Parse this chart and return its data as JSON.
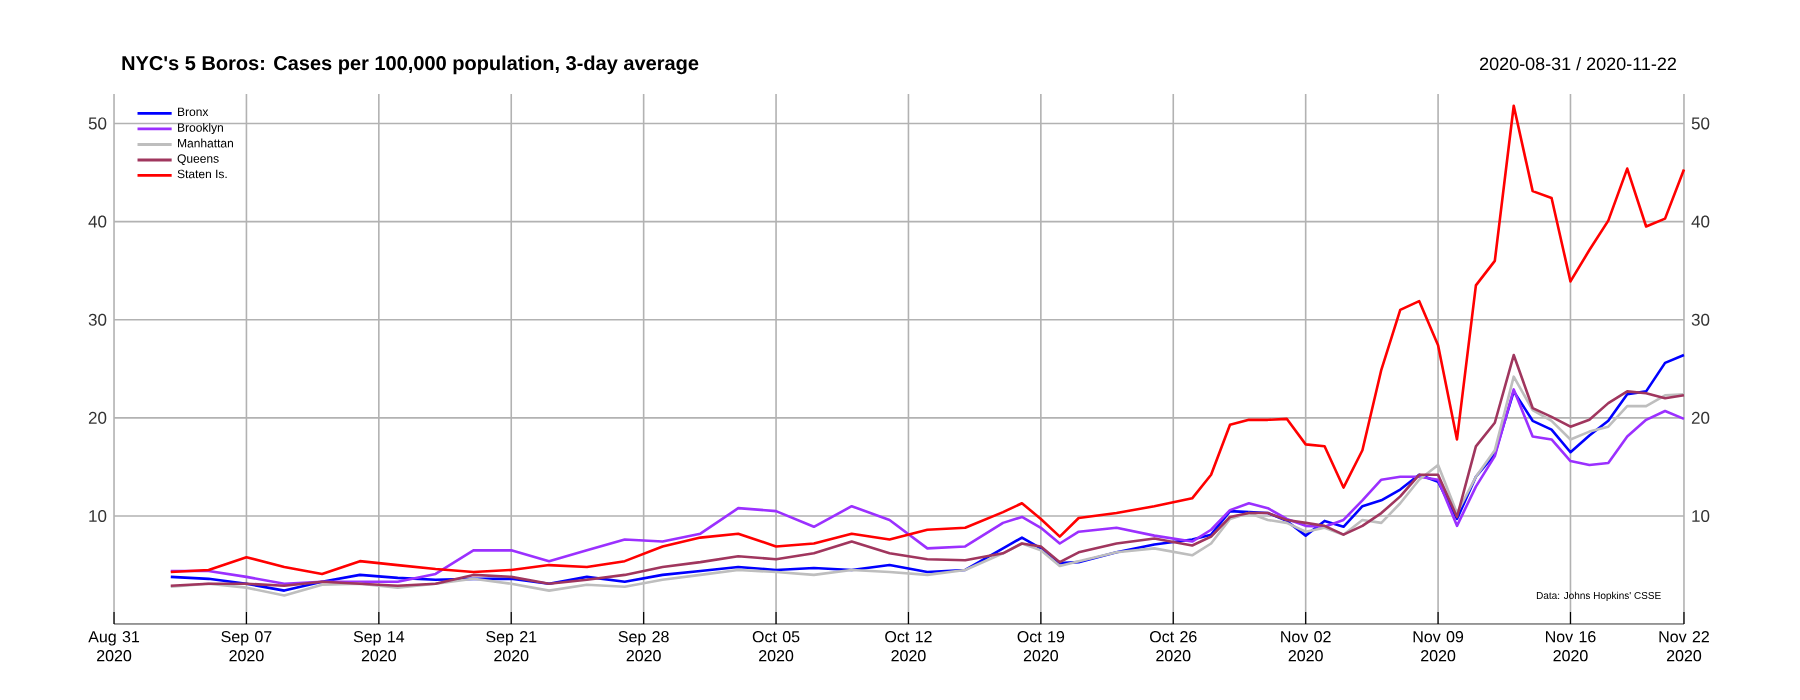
{
  "chart_data": {
    "type": "line",
    "title": "NYC's 5 Boros: Cases per 100,000 population, 3-day average",
    "subtitle": "2020-08-31 / 2020-11-22",
    "annotations": [
      "Data: Johns Hopkins' CSSE"
    ],
    "x": [
      "2020-09-03",
      "2020-09-05",
      "2020-09-07",
      "2020-09-09",
      "2020-09-11",
      "2020-09-13",
      "2020-09-15",
      "2020-09-17",
      "2020-09-19",
      "2020-09-21",
      "2020-09-23",
      "2020-09-25",
      "2020-09-27",
      "2020-09-29",
      "2020-10-01",
      "2020-10-03",
      "2020-10-05",
      "2020-10-07",
      "2020-10-09",
      "2020-10-11",
      "2020-10-13",
      "2020-10-15",
      "2020-10-17",
      "2020-10-18",
      "2020-10-19",
      "2020-10-20",
      "2020-10-21",
      "2020-10-23",
      "2020-10-25",
      "2020-10-27",
      "2020-10-28",
      "2020-10-29",
      "2020-10-30",
      "2020-10-31",
      "2020-11-01",
      "2020-11-02",
      "2020-11-03",
      "2020-11-04",
      "2020-11-05",
      "2020-11-06",
      "2020-11-07",
      "2020-11-08",
      "2020-11-09",
      "2020-11-10",
      "2020-11-11",
      "2020-11-12",
      "2020-11-13",
      "2020-11-14",
      "2020-11-15",
      "2020-11-16",
      "2020-11-17",
      "2020-11-18",
      "2020-11-19",
      "2020-11-20",
      "2020-11-21",
      "2020-11-22"
    ],
    "series": [
      {
        "name": "Bronx",
        "color": "#0000ff",
        "values": [
          3.8,
          3.6,
          3.1,
          2.4,
          3.3,
          4.0,
          3.7,
          3.5,
          3.6,
          3.6,
          3.1,
          3.8,
          3.3,
          4.0,
          4.4,
          4.8,
          4.5,
          4.7,
          4.5,
          5.0,
          4.3,
          4.5,
          6.7,
          7.8,
          6.7,
          5.2,
          5.3,
          6.3,
          7.1,
          7.6,
          8.1,
          10.5,
          10.4,
          10.3,
          9.5,
          8.0,
          9.5,
          8.9,
          11.0,
          11.6,
          12.7,
          14.2,
          13.5,
          9.7,
          14.0,
          16.3,
          22.7,
          19.7,
          18.8,
          16.5,
          18.2,
          19.7,
          22.4,
          22.7,
          25.6,
          26.4
        ]
      },
      {
        "name": "Brooklyn",
        "color": "#9b30ff",
        "values": [
          4.4,
          4.4,
          3.8,
          3.1,
          3.3,
          3.3,
          3.3,
          4.1,
          6.5,
          6.5,
          5.4,
          6.5,
          7.6,
          7.4,
          8.2,
          10.8,
          10.5,
          8.9,
          11.0,
          9.6,
          6.7,
          6.9,
          9.3,
          9.9,
          8.8,
          7.2,
          8.4,
          8.8,
          8.0,
          7.4,
          8.6,
          10.6,
          11.3,
          10.8,
          9.7,
          9.0,
          8.9,
          9.6,
          11.6,
          13.7,
          14.0,
          14.0,
          13.7,
          9.0,
          13.0,
          16.1,
          22.9,
          18.1,
          17.8,
          15.6,
          15.2,
          15.4,
          18.1,
          19.8,
          20.7,
          19.9
        ]
      },
      {
        "name": "Manhattan",
        "color": "#bebebe",
        "values": [
          2.8,
          3.1,
          2.7,
          1.9,
          3.0,
          3.1,
          2.7,
          3.1,
          3.6,
          3.1,
          2.4,
          3.0,
          2.8,
          3.5,
          4.0,
          4.5,
          4.3,
          4.0,
          4.5,
          4.3,
          4.0,
          4.5,
          6.2,
          7.2,
          6.5,
          4.9,
          5.4,
          6.3,
          6.7,
          6.0,
          7.2,
          9.7,
          10.3,
          9.6,
          9.3,
          8.4,
          8.8,
          8.1,
          9.6,
          9.3,
          11.3,
          13.7,
          15.2,
          10.3,
          14.0,
          16.7,
          24.2,
          20.8,
          19.7,
          17.8,
          18.6,
          19.1,
          21.2,
          21.2,
          22.3,
          22.4
        ]
      },
      {
        "name": "Queens",
        "color": "#a0365e",
        "values": [
          2.9,
          3.1,
          3.1,
          2.9,
          3.3,
          3.1,
          2.9,
          3.1,
          4.0,
          3.8,
          3.1,
          3.5,
          4.0,
          4.8,
          5.3,
          5.9,
          5.6,
          6.2,
          7.4,
          6.2,
          5.6,
          5.5,
          6.2,
          7.2,
          6.9,
          5.3,
          6.3,
          7.2,
          7.7,
          7.0,
          7.9,
          9.9,
          10.3,
          10.3,
          9.6,
          9.3,
          9.0,
          8.1,
          9.0,
          10.3,
          12.0,
          14.2,
          14.2,
          9.9,
          17.1,
          19.5,
          26.4,
          21.0,
          20.1,
          19.1,
          19.8,
          21.5,
          22.7,
          22.5,
          22.0,
          22.3
        ]
      },
      {
        "name": "Staten Is.",
        "color": "#ff0000",
        "values": [
          4.3,
          4.5,
          5.8,
          4.8,
          4.1,
          5.4,
          5.0,
          4.6,
          4.3,
          4.5,
          5.0,
          4.8,
          5.4,
          6.9,
          7.8,
          8.2,
          6.9,
          7.2,
          8.2,
          7.6,
          8.6,
          8.8,
          10.4,
          11.3,
          9.7,
          7.9,
          9.8,
          10.3,
          11.0,
          11.8,
          14.2,
          19.3,
          19.8,
          19.8,
          19.9,
          17.3,
          17.1,
          12.9,
          16.7,
          24.9,
          31.0,
          31.9,
          27.4,
          17.8,
          33.5,
          36.0,
          51.8,
          43.1,
          42.4,
          33.9,
          37.1,
          40.1,
          45.4,
          39.5,
          40.3,
          45.3
        ]
      }
    ],
    "xlim": [
      "2020-08-31",
      "2020-11-22"
    ],
    "xticks": [
      {
        "value": "2020-08-31",
        "label": "Aug 31 2020"
      },
      {
        "value": "2020-09-07",
        "label": "Sep 07 2020"
      },
      {
        "value": "2020-09-14",
        "label": "Sep 14 2020"
      },
      {
        "value": "2020-09-21",
        "label": "Sep 21 2020"
      },
      {
        "value": "2020-09-28",
        "label": "Sep 28 2020"
      },
      {
        "value": "2020-10-05",
        "label": "Oct 05 2020"
      },
      {
        "value": "2020-10-12",
        "label": "Oct 12 2020"
      },
      {
        "value": "2020-10-19",
        "label": "Oct 19 2020"
      },
      {
        "value": "2020-10-26",
        "label": "Oct 26 2020"
      },
      {
        "value": "2020-11-02",
        "label": "Nov 02 2020"
      },
      {
        "value": "2020-11-09",
        "label": "Nov 09 2020"
      },
      {
        "value": "2020-11-16",
        "label": "Nov 16 2020"
      },
      {
        "value": "2020-11-22",
        "label": "Nov 22 2020"
      }
    ],
    "ylim": [
      -1,
      53
    ],
    "yticks": [
      10,
      20,
      30,
      40,
      50
    ],
    "y2lim": [
      -1,
      53
    ],
    "y2ticks": [
      10,
      20,
      30,
      40,
      50
    ],
    "grid": true,
    "legend": "top left",
    "marker": "none",
    "line_style": "solid"
  }
}
